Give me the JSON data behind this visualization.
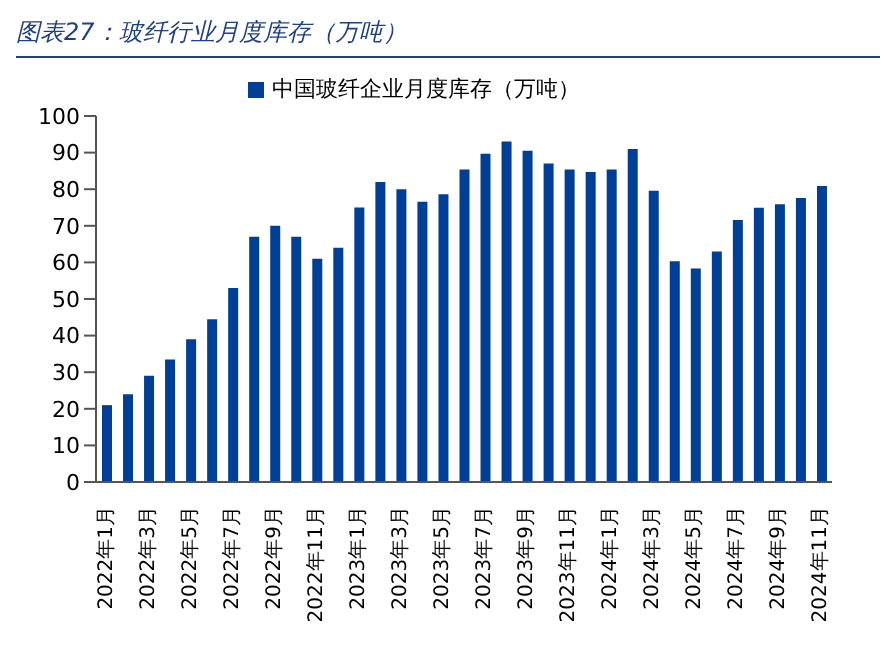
{
  "chart_data": {
    "type": "bar",
    "title": "图表27：玻纤行业月度库存（万吨）",
    "categories": [
      "2022年1月",
      null,
      "2022年3月",
      null,
      "2022年5月",
      null,
      "2022年7月",
      null,
      "2022年9月",
      null,
      "2022年11月",
      null,
      "2023年1月",
      null,
      "2023年3月",
      null,
      "2023年5月",
      null,
      "2023年7月",
      null,
      "2023年9月",
      null,
      "2023年11月",
      null,
      "2024年1月",
      null,
      "2024年3月",
      null,
      "2024年5月",
      null,
      "2024年7月",
      null,
      "2024年9月",
      null,
      "2024年11月"
    ],
    "series": [
      {
        "name": "中国玻纤企业月度库存（万吨）",
        "color": "#003f98",
        "values": [
          21,
          24,
          29,
          33.5,
          39,
          44.5,
          53,
          67,
          70,
          67,
          61,
          64,
          75,
          82,
          80,
          76.6,
          78.6,
          85.4,
          89.7,
          93,
          90.5,
          87,
          85.4,
          84.7,
          85.4,
          91,
          79.6,
          60.3,
          58.3,
          63,
          71.6,
          74.9,
          75.9,
          77.6,
          80.9
        ]
      }
    ],
    "ylim": [
      0,
      100
    ],
    "yticks": [
      0,
      10,
      20,
      30,
      40,
      50,
      60,
      70,
      80,
      90,
      100
    ],
    "legend": "top",
    "grid": false
  }
}
